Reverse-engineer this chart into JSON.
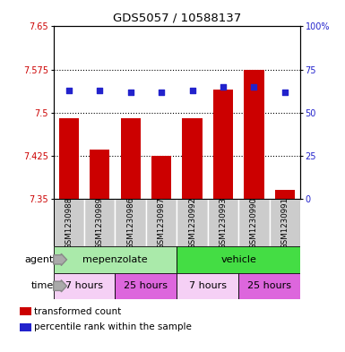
{
  "title": "GDS5057 / 10588137",
  "samples": [
    "GSM1230988",
    "GSM1230989",
    "GSM1230986",
    "GSM1230987",
    "GSM1230992",
    "GSM1230993",
    "GSM1230990",
    "GSM1230991"
  ],
  "bar_values": [
    7.49,
    7.435,
    7.49,
    7.425,
    7.49,
    7.54,
    7.575,
    7.365
  ],
  "dot_values": [
    63,
    63,
    62,
    62,
    63,
    65,
    65,
    62
  ],
  "bar_bottom": 7.35,
  "bar_color": "#cc0000",
  "dot_color": "#2222cc",
  "ylim_left": [
    7.35,
    7.65
  ],
  "ylim_right": [
    0,
    100
  ],
  "yticks_left": [
    7.35,
    7.425,
    7.5,
    7.575,
    7.65
  ],
  "yticks_right": [
    0,
    25,
    50,
    75,
    100
  ],
  "ytick_labels_left": [
    "7.35",
    "7.425",
    "7.5",
    "7.575",
    "7.65"
  ],
  "ytick_labels_right": [
    "0",
    "25",
    "50",
    "75",
    "100%"
  ],
  "agent_groups": [
    {
      "label": "mepenzolate",
      "start": 0,
      "end": 4,
      "color": "#aaeaaa"
    },
    {
      "label": "vehicle",
      "start": 4,
      "end": 8,
      "color": "#44dd44"
    }
  ],
  "time_groups": [
    {
      "label": "7 hours",
      "start": 0,
      "end": 2,
      "color": "#f5d0f5"
    },
    {
      "label": "25 hours",
      "start": 2,
      "end": 4,
      "color": "#dd66dd"
    },
    {
      "label": "7 hours",
      "start": 4,
      "end": 6,
      "color": "#f5d0f5"
    },
    {
      "label": "25 hours",
      "start": 6,
      "end": 8,
      "color": "#dd66dd"
    }
  ],
  "legend_items": [
    {
      "color": "#cc0000",
      "label": "transformed count"
    },
    {
      "color": "#2222cc",
      "label": "percentile rank within the sample"
    }
  ],
  "sample_box_color": "#cccccc",
  "plot_bg": "#ffffff",
  "left_label_color": "#000000",
  "title_color": "#000000"
}
